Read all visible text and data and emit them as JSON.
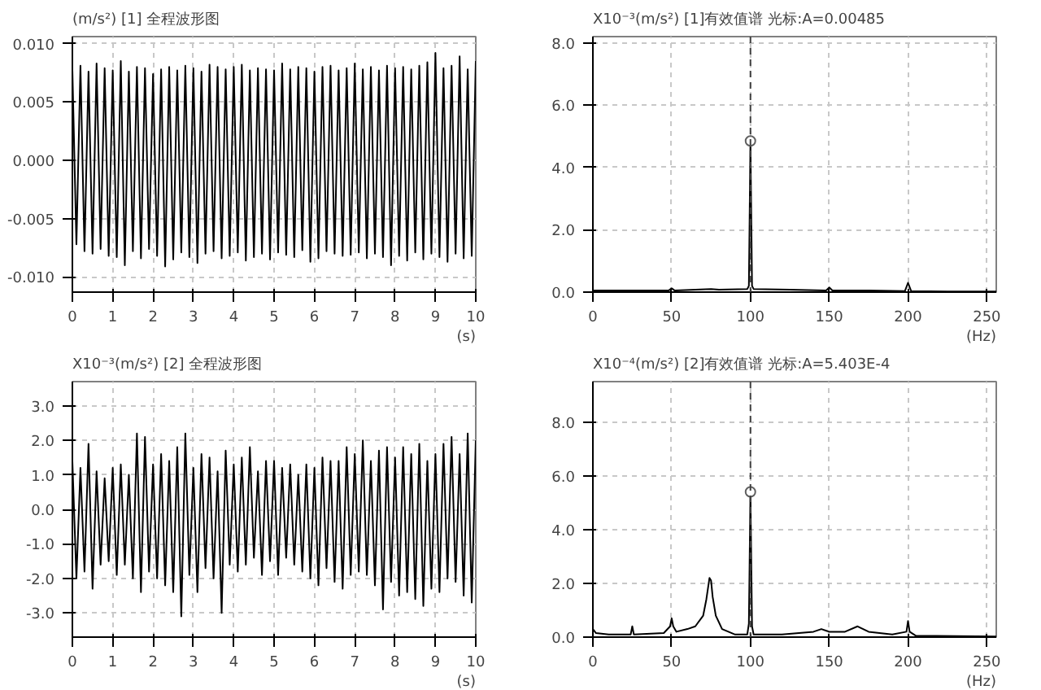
{
  "chart_data": [
    {
      "type": "line",
      "title": "[1] 全程波形图",
      "ylabel": "(m/s²)",
      "xlabel": "(s)",
      "grid": true,
      "xlim": [
        0,
        10
      ],
      "ylim": [
        -0.0113,
        0.0106
      ],
      "xticks": [
        0,
        1,
        2,
        3,
        4,
        5,
        6,
        7,
        8,
        9,
        10
      ],
      "yticks": [
        {
          "value": -0.01,
          "label": "-0.010"
        },
        {
          "value": -0.005,
          "label": "-0.005"
        },
        {
          "value": 0,
          "label": "0.000"
        },
        {
          "value": 0.005,
          "label": "0.005"
        },
        {
          "value": 0.01,
          "label": "0.010"
        }
      ],
      "x": [
        0,
        0.1,
        0.2,
        0.3,
        0.4,
        0.5,
        0.6,
        0.7,
        0.8,
        0.9,
        1,
        1.1,
        1.2,
        1.3,
        1.4,
        1.5,
        1.6,
        1.7,
        1.8,
        1.9,
        2,
        2.1,
        2.2,
        2.3,
        2.4,
        2.5,
        2.6,
        2.7,
        2.8,
        2.9,
        3,
        3.1,
        3.2,
        3.3,
        3.4,
        3.5,
        3.6,
        3.7,
        3.8,
        3.9,
        4,
        4.1,
        4.2,
        4.3,
        4.4,
        4.5,
        4.6,
        4.7,
        4.8,
        4.9,
        5,
        5.1,
        5.2,
        5.3,
        5.4,
        5.5,
        5.6,
        5.7,
        5.8,
        5.9,
        6,
        6.1,
        6.2,
        6.3,
        6.4,
        6.5,
        6.6,
        6.7,
        6.8,
        6.9,
        7,
        7.1,
        7.2,
        7.3,
        7.4,
        7.5,
        7.6,
        7.7,
        7.8,
        7.9,
        8,
        8.1,
        8.2,
        8.3,
        8.4,
        8.5,
        8.6,
        8.7,
        8.8,
        8.9,
        9,
        9.1,
        9.2,
        9.3,
        9.4,
        9.5,
        9.6,
        9.7,
        9.8,
        9.9,
        10
      ],
      "series": [
        {
          "color": "#000000",
          "values": [
            0.0078,
            -0.0072,
            0.0081,
            -0.0078,
            0.0076,
            -0.008,
            0.0083,
            -0.0076,
            0.0079,
            -0.0082,
            0.0077,
            -0.0083,
            0.0085,
            -0.009,
            0.0076,
            -0.0078,
            0.008,
            -0.0084,
            0.0079,
            -0.0076,
            0.0074,
            -0.0082,
            0.0078,
            -0.0091,
            0.008,
            -0.0085,
            0.0077,
            -0.0079,
            0.0081,
            -0.0083,
            0.0079,
            -0.0088,
            0.0076,
            -0.008,
            0.0082,
            -0.0078,
            0.008,
            -0.0084,
            0.0078,
            -0.0082,
            0.008,
            -0.0079,
            0.0082,
            -0.0086,
            0.0077,
            -0.0083,
            0.0079,
            -0.008,
            0.0078,
            -0.0085,
            0.0077,
            -0.0079,
            0.0083,
            -0.0081,
            0.0078,
            -0.0083,
            0.008,
            -0.0077,
            0.0079,
            -0.0087,
            0.0076,
            -0.0084,
            0.008,
            -0.0078,
            0.0081,
            -0.008,
            0.0077,
            -0.0082,
            0.0079,
            -0.0081,
            0.0083,
            -0.0079,
            0.0078,
            -0.0084,
            0.008,
            -0.008,
            0.0077,
            -0.0083,
            0.0081,
            -0.009,
            0.0079,
            -0.0082,
            0.008,
            -0.0086,
            0.0078,
            -0.0079,
            0.0081,
            -0.0085,
            0.0084,
            -0.008,
            0.0092,
            -0.0083,
            0.0079,
            -0.0087,
            0.0081,
            -0.008,
            0.0089,
            -0.0084,
            0.0078,
            -0.0082,
            0.0085
          ]
        }
      ]
    },
    {
      "type": "line",
      "title": "[1]有效值谱 光标:A=0.00485",
      "ylabel": "X10⁻³(m/s²)",
      "xlabel": "(Hz)",
      "grid": true,
      "xlim": [
        0,
        256
      ],
      "ylim": [
        0,
        8.2
      ],
      "xticks": [
        0,
        50,
        100,
        150,
        200,
        250
      ],
      "yticks": [
        {
          "value": 0,
          "label": "0.0"
        },
        {
          "value": 2,
          "label": "2.0"
        },
        {
          "value": 4,
          "label": "4.0"
        },
        {
          "value": 6,
          "label": "6.0"
        },
        {
          "value": 8,
          "label": "8.0"
        }
      ],
      "ref_lines": [
        {
          "axis": "x",
          "value": 100,
          "color": "#404040",
          "line_style": "dashed"
        }
      ],
      "series": [
        {
          "color": "#000000",
          "x": [
            0,
            25,
            48,
            50,
            52,
            75,
            80,
            98,
            99,
            100,
            101,
            102,
            125,
            148,
            150,
            152,
            175,
            198,
            200,
            202,
            225,
            256
          ],
          "values": [
            0.05,
            0.05,
            0.05,
            0.12,
            0.05,
            0.1,
            0.08,
            0.1,
            0.2,
            4.85,
            0.2,
            0.1,
            0.08,
            0.05,
            0.15,
            0.05,
            0.05,
            0.03,
            0.3,
            0.03,
            0.02,
            0.02
          ]
        },
        {
          "type": "scatter",
          "marker": "circle",
          "color": "#606060",
          "x": [
            100
          ],
          "values": [
            4.85
          ]
        }
      ]
    },
    {
      "type": "line",
      "title": "[2] 全程波形图",
      "ylabel": "X10⁻³(m/s²)",
      "xlabel": "(s)",
      "grid": true,
      "xlim": [
        0,
        10
      ],
      "ylim": [
        -3.7,
        3.7
      ],
      "xticks": [
        0,
        1,
        2,
        3,
        4,
        5,
        6,
        7,
        8,
        9,
        10
      ],
      "yticks": [
        {
          "value": -3,
          "label": "-3.0"
        },
        {
          "value": -2,
          "label": "-2.0"
        },
        {
          "value": -1,
          "label": "-1.0"
        },
        {
          "value": 0,
          "label": "0.0"
        },
        {
          "value": 1,
          "label": "1.0"
        },
        {
          "value": 2,
          "label": "2.0"
        },
        {
          "value": 3,
          "label": "3.0"
        }
      ],
      "x": [
        0,
        0.1,
        0.2,
        0.3,
        0.4,
        0.5,
        0.6,
        0.7,
        0.8,
        0.9,
        1,
        1.1,
        1.2,
        1.3,
        1.4,
        1.5,
        1.6,
        1.7,
        1.8,
        1.9,
        2,
        2.1,
        2.2,
        2.3,
        2.4,
        2.5,
        2.6,
        2.7,
        2.8,
        2.9,
        3,
        3.1,
        3.2,
        3.3,
        3.4,
        3.5,
        3.6,
        3.7,
        3.8,
        3.9,
        4,
        4.1,
        4.2,
        4.3,
        4.4,
        4.5,
        4.6,
        4.7,
        4.8,
        4.9,
        5,
        5.1,
        5.2,
        5.3,
        5.4,
        5.5,
        5.6,
        5.7,
        5.8,
        5.9,
        6,
        6.1,
        6.2,
        6.3,
        6.4,
        6.5,
        6.6,
        6.7,
        6.8,
        6.9,
        7,
        7.1,
        7.2,
        7.3,
        7.4,
        7.5,
        7.6,
        7.7,
        7.8,
        7.9,
        8,
        8.1,
        8.2,
        8.3,
        8.4,
        8.5,
        8.6,
        8.7,
        8.8,
        8.9,
        9,
        9.1,
        9.2,
        9.3,
        9.4,
        9.5,
        9.6,
        9.7,
        9.8,
        9.9,
        10
      ],
      "series": [
        {
          "color": "#000000",
          "values": [
            1.4,
            -2.0,
            1.2,
            -1.8,
            1.9,
            -2.3,
            1.1,
            -1.6,
            0.9,
            -1.5,
            1.2,
            -1.9,
            1.3,
            -1.6,
            1.0,
            -2.0,
            2.2,
            -2.4,
            2.1,
            -1.8,
            1.3,
            -2.0,
            1.6,
            -2.2,
            1.4,
            -2.4,
            1.8,
            -3.1,
            2.2,
            -1.9,
            1.2,
            -2.4,
            1.6,
            -1.7,
            1.5,
            -2.0,
            1.1,
            -3.0,
            1.7,
            -1.6,
            1.3,
            -1.8,
            1.5,
            -1.6,
            1.8,
            -1.4,
            1.1,
            -1.9,
            1.4,
            -1.5,
            1.4,
            -1.9,
            1.2,
            -1.4,
            1.3,
            -1.6,
            1.0,
            -1.8,
            1.3,
            -2.0,
            1.2,
            -2.2,
            1.5,
            -1.7,
            1.4,
            -2.1,
            1.4,
            -2.3,
            1.8,
            -1.9,
            1.6,
            -1.8,
            2.0,
            -1.9,
            1.4,
            -2.2,
            1.7,
            -2.9,
            1.8,
            -2.1,
            1.5,
            -2.5,
            1.8,
            -2.4,
            1.6,
            -2.6,
            1.9,
            -2.8,
            1.4,
            -2.3,
            1.6,
            -2.4,
            1.9,
            -2.0,
            2.1,
            -2.1,
            1.6,
            -2.5,
            2.2,
            -2.7,
            2.0
          ]
        }
      ]
    },
    {
      "type": "line",
      "title": "[2]有效值谱 光标:A=5.403E-4",
      "ylabel": "X10⁻⁴(m/s²)",
      "xlabel": "(Hz)",
      "grid": true,
      "xlim": [
        0,
        256
      ],
      "ylim": [
        0,
        9.5
      ],
      "xticks": [
        0,
        50,
        100,
        150,
        200,
        250
      ],
      "yticks": [
        {
          "value": 0,
          "label": "0.0"
        },
        {
          "value": 2,
          "label": "2.0"
        },
        {
          "value": 4,
          "label": "4.0"
        },
        {
          "value": 6,
          "label": "6.0"
        },
        {
          "value": 8,
          "label": "8.0"
        }
      ],
      "ref_lines": [
        {
          "axis": "x",
          "value": 100,
          "color": "#404040",
          "line_style": "dashed"
        }
      ],
      "series": [
        {
          "color": "#000000",
          "x": [
            0,
            2,
            10,
            24,
            25,
            26,
            45,
            49,
            50,
            51,
            53,
            60,
            65,
            70,
            72,
            74,
            75,
            76,
            78,
            82,
            90,
            98,
            99,
            100,
            101,
            102,
            120,
            140,
            145,
            150,
            160,
            168,
            175,
            190,
            199,
            200,
            201,
            205,
            256
          ],
          "values": [
            0.3,
            0.15,
            0.1,
            0.1,
            0.4,
            0.1,
            0.15,
            0.4,
            0.7,
            0.4,
            0.2,
            0.3,
            0.4,
            0.8,
            1.4,
            2.2,
            2.1,
            1.5,
            0.8,
            0.3,
            0.1,
            0.1,
            0.5,
            5.4,
            0.4,
            0.1,
            0.1,
            0.2,
            0.3,
            0.2,
            0.2,
            0.4,
            0.2,
            0.1,
            0.2,
            0.6,
            0.2,
            0.05,
            0.02
          ]
        },
        {
          "type": "scatter",
          "marker": "circle",
          "color": "#606060",
          "x": [
            100
          ],
          "values": [
            5.4
          ]
        }
      ]
    }
  ]
}
